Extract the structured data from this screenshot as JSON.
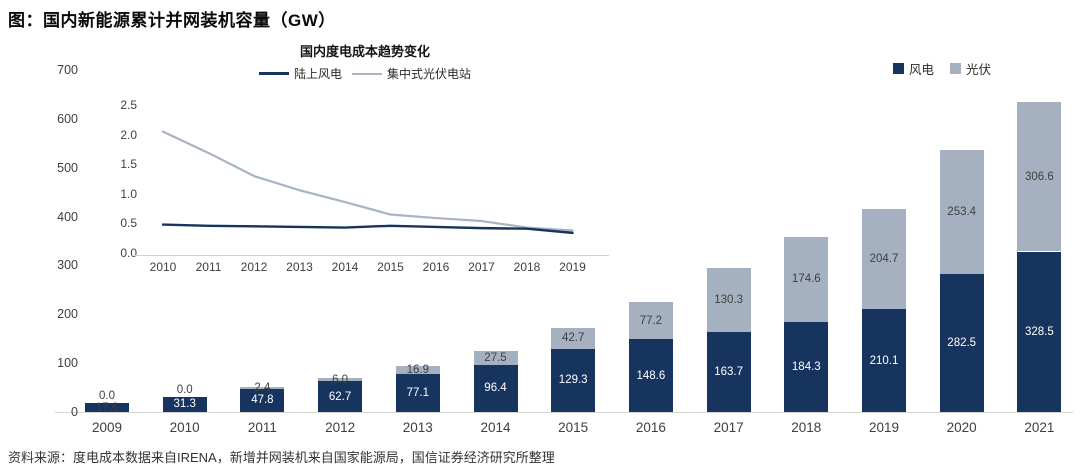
{
  "title": "图：国内新能源累计并网装机容量（GW）",
  "source": "资料来源：度电成本数据来自IRENA，新增并网装机来自国家能源局，国信证券经济研究所整理",
  "colors": {
    "wind": "#17345F",
    "solar": "#A5B1C0",
    "solar_line": "#A8B4C2",
    "label_dark": "#3f3f3f",
    "label_light": "#ffffff",
    "axis": "#d6d6d6"
  },
  "chart_data": [
    {
      "type": "bar",
      "stacked": true,
      "title": "图：国内新能源累计并网装机容量（GW）",
      "categories": [
        "2009",
        "2010",
        "2011",
        "2012",
        "2013",
        "2014",
        "2015",
        "2016",
        "2017",
        "2018",
        "2019",
        "2020",
        "2021"
      ],
      "series": [
        {
          "name": "风电",
          "color": "#17345F",
          "values": [
            17.6,
            31.3,
            47.8,
            62.7,
            77.1,
            96.4,
            129.3,
            148.6,
            163.7,
            184.3,
            210.1,
            282.5,
            328.5
          ]
        },
        {
          "name": "光伏",
          "color": "#A5B1C0",
          "values": [
            0.0,
            0.0,
            2.4,
            6.0,
            16.9,
            27.5,
            42.7,
            77.2,
            130.3,
            174.6,
            204.7,
            253.4,
            306.6
          ]
        }
      ],
      "ylim": [
        0,
        700
      ],
      "yticks": [
        0,
        100,
        200,
        300,
        400,
        500,
        600,
        700
      ],
      "grid": false,
      "legend_position": "top-right",
      "value_labels": "one-decimal"
    },
    {
      "type": "line",
      "title": "国内度电成本趋势变化",
      "x": [
        "2010",
        "2011",
        "2012",
        "2013",
        "2014",
        "2015",
        "2016",
        "2017",
        "2018",
        "2019"
      ],
      "series": [
        {
          "name": "陆上风电",
          "color": "#17345F",
          "values": [
            0.48,
            0.46,
            0.45,
            0.44,
            0.43,
            0.46,
            0.44,
            0.42,
            0.41,
            0.34
          ]
        },
        {
          "name": "集中式光伏电站",
          "color": "#A8B4C2",
          "values": [
            2.05,
            1.69,
            1.3,
            1.06,
            0.86,
            0.65,
            0.59,
            0.54,
            0.43,
            0.38
          ]
        }
      ],
      "ylim": [
        0.0,
        2.5
      ],
      "yticks": [
        0.0,
        0.5,
        1.0,
        1.5,
        2.0,
        2.5
      ],
      "grid": false,
      "legend_position": "top"
    }
  ]
}
